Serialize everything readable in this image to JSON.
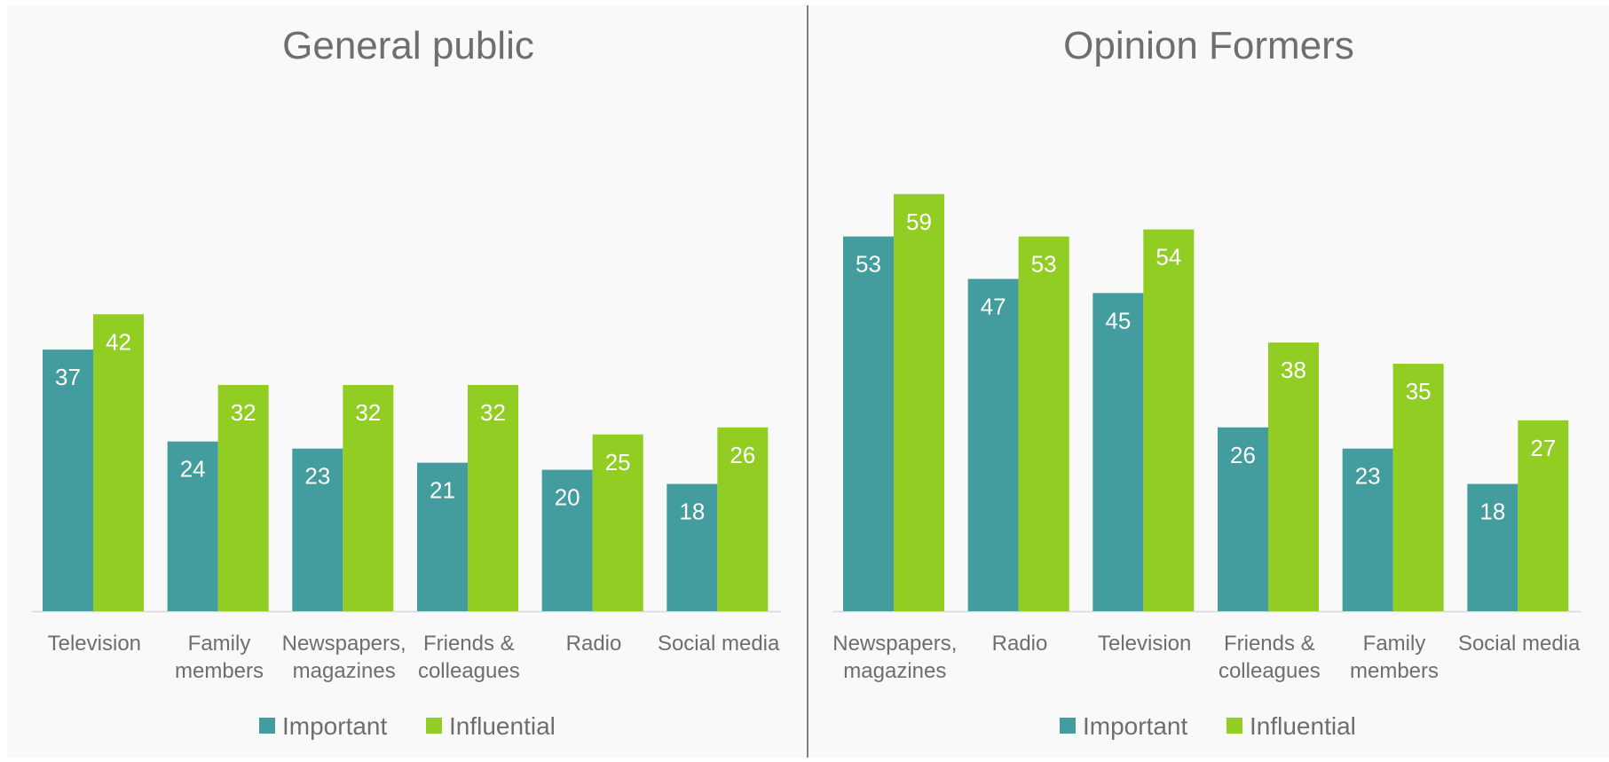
{
  "colors": {
    "background": "#f9f9f9",
    "important": "#439c9e",
    "influential": "#92cd24",
    "title_text": "#6e6e6e",
    "axis_text": "#6e6e6e",
    "divider": "#7f7f7f",
    "value_label": "#ffffff"
  },
  "chart_data": [
    {
      "type": "bar",
      "title": "General public",
      "categories": [
        "Television",
        "Family members",
        "Newspapers, magazines",
        "Friends & colleagues",
        "Radio",
        "Social media"
      ],
      "series": [
        {
          "name": "Important",
          "values": [
            37,
            24,
            23,
            21,
            20,
            18
          ]
        },
        {
          "name": "Influential",
          "values": [
            42,
            32,
            32,
            32,
            25,
            26
          ]
        }
      ],
      "ylim": [
        0,
        70
      ],
      "grid": false,
      "data_labels": true,
      "legend": "bottom-center"
    },
    {
      "type": "bar",
      "title": "Opinion Formers",
      "categories": [
        "Newspapers, magazines",
        "Radio",
        "Television",
        "Friends & colleagues",
        "Family members",
        "Social media"
      ],
      "series": [
        {
          "name": "Important",
          "values": [
            53,
            47,
            45,
            26,
            23,
            18
          ]
        },
        {
          "name": "Influential",
          "values": [
            59,
            53,
            54,
            38,
            35,
            27
          ]
        }
      ],
      "ylim": [
        0,
        70
      ],
      "grid": false,
      "data_labels": true,
      "legend": "bottom-center"
    }
  ]
}
